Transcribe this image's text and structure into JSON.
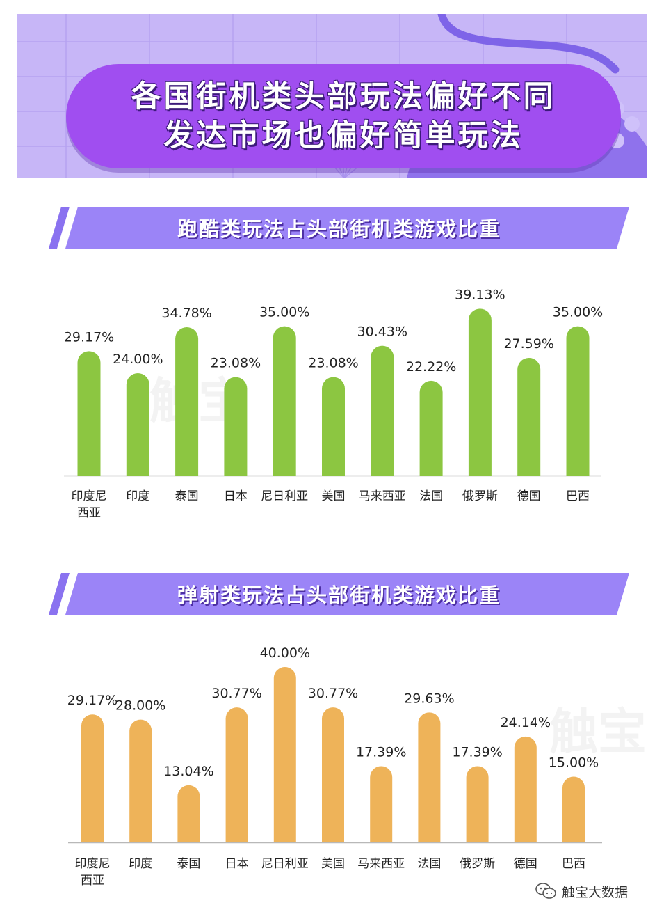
{
  "header": {
    "title_line1": "各国街机类头部玩法偏好不同",
    "title_line2": "发达市场也偏好简单玩法"
  },
  "colors": {
    "banner_bg": "#c7b6f7",
    "pill": "#a04ef0",
    "section_band": "#9b84f7",
    "parkour_bar": "#8cc641",
    "shooter_bar": "#eeb359"
  },
  "chart_data": [
    {
      "type": "bar",
      "title": "跑酷类玩法占头部街机类游戏比重",
      "categories": [
        "印度尼西亚",
        "印度",
        "泰国",
        "日本",
        "尼日利亚",
        "美国",
        "马来西亚",
        "法国",
        "俄罗斯",
        "德国",
        "巴西"
      ],
      "category_lines": [
        [
          "印度尼",
          "西亚"
        ],
        [
          "印度"
        ],
        [
          "泰国"
        ],
        [
          "日本"
        ],
        [
          "尼日利亚"
        ],
        [
          "美国"
        ],
        [
          "马来西亚"
        ],
        [
          "法国"
        ],
        [
          "俄罗斯"
        ],
        [
          "德国"
        ],
        [
          "巴西"
        ]
      ],
      "values": [
        29.17,
        24.0,
        34.78,
        23.08,
        35.0,
        23.08,
        30.43,
        22.22,
        39.13,
        27.59,
        35.0
      ],
      "value_labels": [
        "29.17%",
        "24.00%",
        "34.78%",
        "23.08%",
        "35.00%",
        "23.08%",
        "30.43%",
        "22.22%",
        "39.13%",
        "27.59%",
        "35.00%"
      ],
      "unit": "%",
      "ylim": [
        0,
        40
      ],
      "xlabel": "",
      "ylabel": ""
    },
    {
      "type": "bar",
      "title": "弹射类玩法占头部街机类游戏比重",
      "categories": [
        "印度尼西亚",
        "印度",
        "泰国",
        "日本",
        "尼日利亚",
        "美国",
        "马来西亚",
        "法国",
        "俄罗斯",
        "德国",
        "巴西"
      ],
      "category_lines": [
        [
          "印度尼",
          "西亚"
        ],
        [
          "印度"
        ],
        [
          "泰国"
        ],
        [
          "日本"
        ],
        [
          "尼日利亚"
        ],
        [
          "美国"
        ],
        [
          "马来西亚"
        ],
        [
          "法国"
        ],
        [
          "俄罗斯"
        ],
        [
          "德国"
        ],
        [
          "巴西"
        ]
      ],
      "values": [
        29.17,
        28.0,
        13.04,
        30.77,
        40.0,
        30.77,
        17.39,
        29.63,
        17.39,
        24.14,
        15.0
      ],
      "value_labels": [
        "29.17%",
        "28.00%",
        "13.04%",
        "30.77%",
        "40.00%",
        "30.77%",
        "17.39%",
        "29.63%",
        "17.39%",
        "24.14%",
        "15.00%"
      ],
      "unit": "%",
      "ylim": [
        0,
        40
      ],
      "xlabel": "",
      "ylabel": ""
    }
  ],
  "footer": {
    "brand": "触宝大数据",
    "icon": "wechat-icon"
  }
}
